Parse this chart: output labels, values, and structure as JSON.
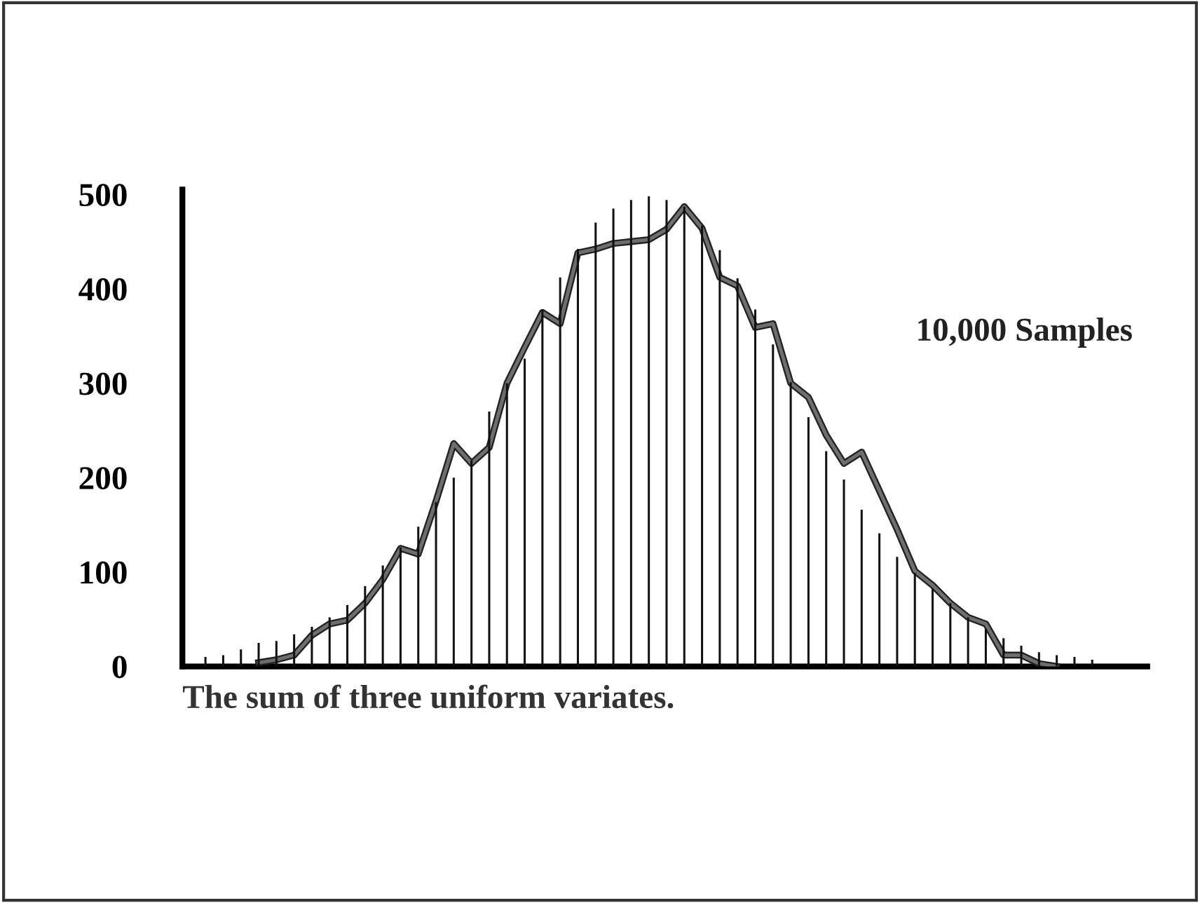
{
  "chart_data": {
    "type": "bar",
    "categories": [
      null,
      null,
      null,
      null,
      null,
      null,
      null,
      null,
      null,
      null,
      null,
      null,
      null,
      null,
      null,
      null,
      null,
      null,
      null,
      null,
      null,
      null,
      null,
      null,
      null,
      null,
      null,
      null,
      null,
      null,
      null,
      null,
      null,
      null,
      null,
      null,
      null,
      null,
      null,
      null,
      null,
      null,
      null,
      null,
      null,
      null,
      null,
      null,
      null,
      null,
      null
    ],
    "xlabel": "The sum of three uniform variates.",
    "annotations": [
      "10,000 Samples"
    ],
    "series": [
      {
        "color": "#111111",
        "values": [
          10,
          12,
          18,
          25,
          27,
          34,
          42,
          52,
          65,
          85,
          107,
          126,
          148,
          174,
          200,
          218,
          270,
          300,
          326,
          378,
          412,
          442,
          470,
          485,
          494,
          498,
          494,
          487,
          467,
          441,
          411,
          378,
          341,
          301,
          264,
          228,
          198,
          166,
          141,
          116,
          99,
          82,
          67,
          52,
          40,
          30,
          22,
          15,
          12,
          10,
          7
        ]
      },
      {
        "type": "line",
        "color": "#6e6e6e",
        "values": [
          null,
          null,
          null,
          4,
          7,
          12,
          33,
          45,
          49,
          67,
          92,
          125,
          119,
          175,
          236,
          215,
          232,
          300,
          338,
          375,
          363,
          438,
          442,
          448,
          450,
          452,
          463,
          487,
          464,
          412,
          403,
          359,
          363,
          300,
          285,
          245,
          215,
          227,
          186,
          145,
          101,
          86,
          67,
          52,
          45,
          12,
          12,
          3,
          0,
          null,
          null
        ]
      }
    ],
    "ylim": [
      0,
      505
    ],
    "yticks": [
      0,
      100,
      200,
      300,
      400,
      500
    ],
    "grid": false,
    "legend": false
  }
}
